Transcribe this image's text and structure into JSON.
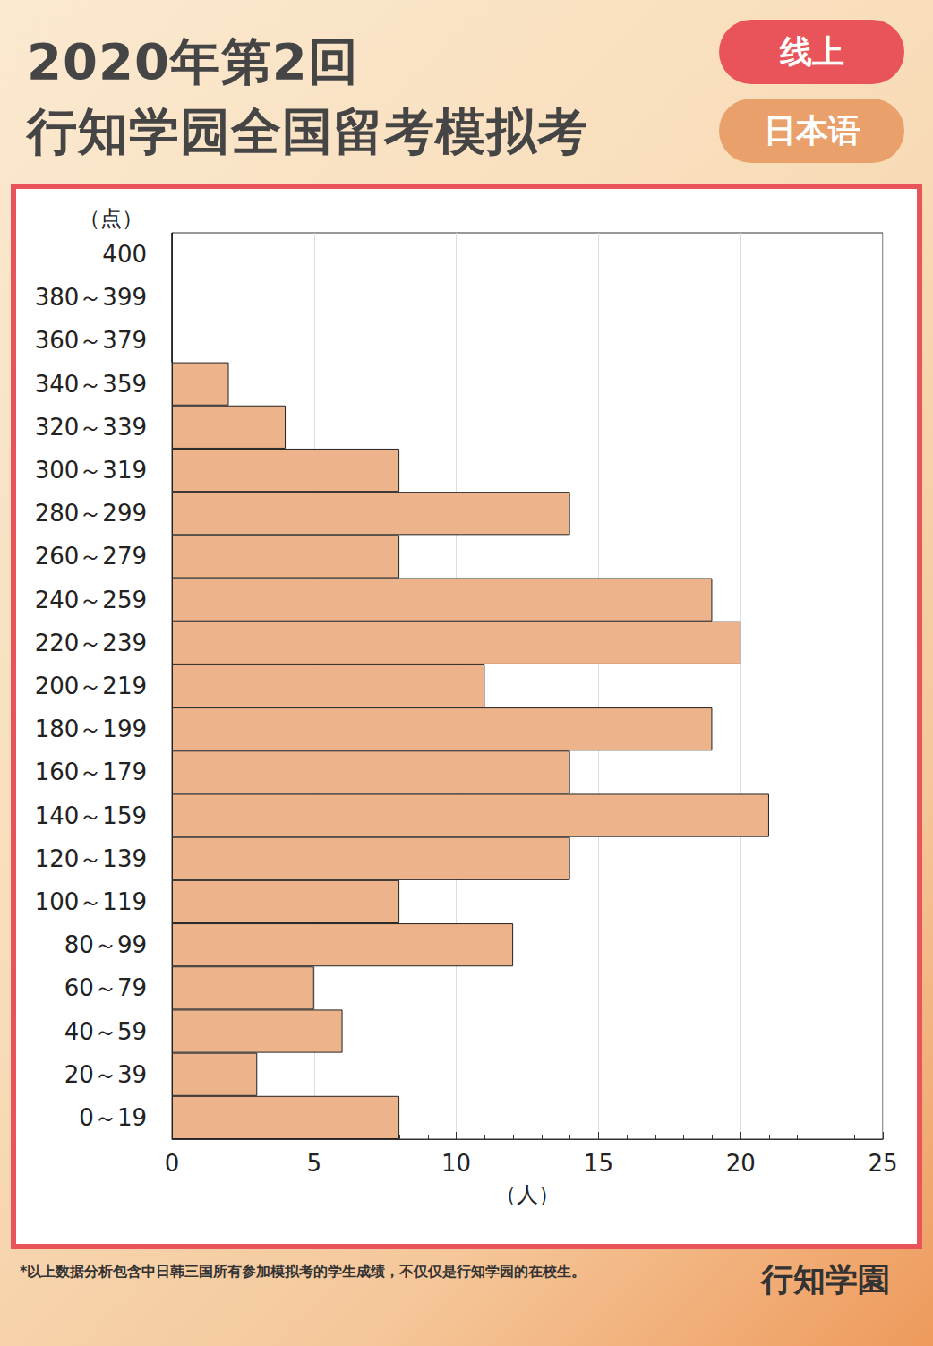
{
  "page": {
    "title_lines": [
      "2020年第2回",
      "行知学园全国留考模拟考"
    ],
    "badges": [
      "线上",
      "日本语"
    ],
    "footnote": "*以上数据分析包含中日韩三国所有参加模拟考的学生成绩，不仅仅是行知学园的在校生。",
    "logo": "行知学園"
  },
  "chart_data": {
    "type": "bar",
    "orientation": "horizontal",
    "categories": [
      "400",
      "380～399",
      "360～379",
      "340～359",
      "320～339",
      "300～319",
      "280～299",
      "260～279",
      "240～259",
      "220～239",
      "200～219",
      "180～199",
      "160～179",
      "140～159",
      "120～139",
      "100～119",
      "80～99",
      "60～79",
      "40～59",
      "20～39",
      "0～19"
    ],
    "values": [
      0,
      0,
      0,
      2,
      4,
      8,
      14,
      8,
      19,
      20,
      11,
      19,
      14,
      21,
      14,
      8,
      12,
      5,
      6,
      3,
      8
    ],
    "color": "#edb48c",
    "x_label": "（人）",
    "y_label": "（点）",
    "xlim": [
      0,
      25
    ],
    "xticks": [
      0,
      5,
      10,
      15,
      20,
      25
    ],
    "grid": true
  }
}
